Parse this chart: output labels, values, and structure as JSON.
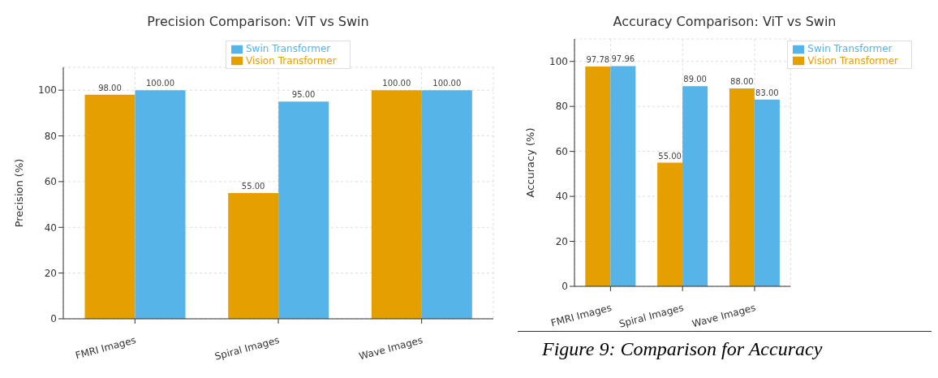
{
  "chart_data": [
    {
      "type": "bar",
      "title": "Precision Comparison: ViT vs Swin",
      "ylabel": "Precision (%)",
      "categories": [
        "FMRI Images",
        "Spiral Images",
        "Wave Images"
      ],
      "series": [
        {
          "name": "Vision Transformer",
          "color": "#e69f00",
          "values": [
            98,
            55,
            100
          ],
          "value_labels": [
            "98.00",
            "55.00",
            "100.00"
          ]
        },
        {
          "name": "Swin Transformer",
          "color": "#56b4e9",
          "values": [
            100,
            95,
            100
          ],
          "value_labels": [
            "100.00",
            "95.00",
            "100.00"
          ]
        }
      ],
      "ylim": [
        0,
        110
      ],
      "yticks": [
        0,
        20,
        40,
        60,
        80,
        100
      ],
      "grid": true,
      "legend": "top"
    },
    {
      "type": "bar",
      "title": "Accuracy Comparison: ViT vs Swin",
      "ylabel": "Accuracy (%)",
      "categories": [
        "FMRI Images",
        "Spiral Images",
        "Wave Images"
      ],
      "series": [
        {
          "name": "Vision Transformer",
          "color": "#e69f00",
          "values": [
            97.78,
            55,
            88
          ],
          "value_labels": [
            "97.78",
            "55.00",
            "88.00"
          ]
        },
        {
          "name": "Swin Transformer",
          "color": "#56b4e9",
          "values": [
            97.96,
            89,
            83
          ],
          "value_labels": [
            "97.96",
            "89.00",
            "83.00"
          ]
        }
      ],
      "ylim": [
        0,
        110
      ],
      "yticks": [
        0,
        20,
        40,
        60,
        80,
        100
      ],
      "grid": true,
      "legend": "top right",
      "annotations": [
        "Figure 9: Comparison for Accuracy"
      ]
    }
  ]
}
